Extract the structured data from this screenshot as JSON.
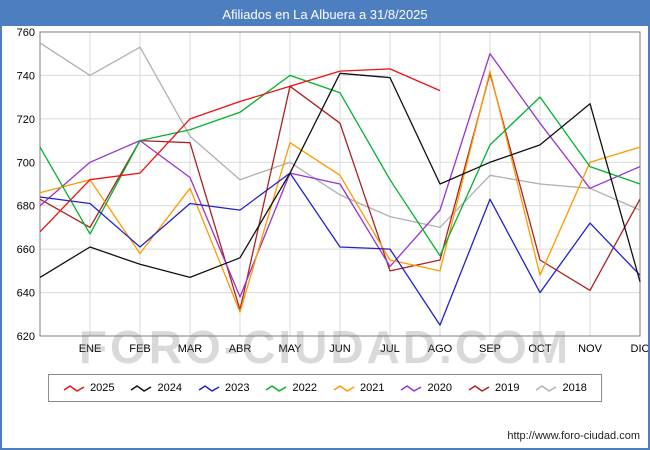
{
  "header": {
    "title": "Afiliados en La Albuera a 31/8/2025",
    "bg_color": "#4d7ebf"
  },
  "watermark": {
    "text": "FORO-CIUDAD.COM"
  },
  "footer": {
    "url": "http://www.foro-ciudad.com"
  },
  "chart_data": {
    "type": "line",
    "title": "Afiliados en La Albuera a 31/8/2025",
    "xlabel": "",
    "ylabel": "",
    "months": [
      "ENE",
      "FEB",
      "MAR",
      "ABR",
      "MAY",
      "JUN",
      "JUL",
      "AGO",
      "SEP",
      "OCT",
      "NOV",
      "DIC"
    ],
    "x_note": "13 points per full series: index 0 = left edge (start of year), indices 1-12 = ENE-DIC",
    "ylim": [
      620,
      760
    ],
    "yticks": [
      620,
      640,
      660,
      680,
      700,
      720,
      740,
      760
    ],
    "grid": true,
    "legend_position": "bottom",
    "grid_color": "#d9d9d9",
    "axis_color": "#7f7f7f",
    "series": [
      {
        "name": "2025",
        "color": "#ee1111",
        "values": [
          668,
          692,
          695,
          720,
          728,
          735,
          742,
          743,
          733
        ]
      },
      {
        "name": "2024",
        "color": "#111111",
        "values": [
          647,
          661,
          653,
          647,
          656,
          695,
          741,
          739,
          690,
          700,
          708,
          727,
          645
        ]
      },
      {
        "name": "2023",
        "color": "#2222cc",
        "values": [
          684,
          681,
          661,
          681,
          678,
          695,
          661,
          660,
          625,
          683,
          640,
          672,
          648
        ]
      },
      {
        "name": "2022",
        "color": "#00b22d",
        "values": [
          707,
          667,
          710,
          715,
          723,
          740,
          732,
          692,
          657,
          708,
          730,
          698,
          690
        ]
      },
      {
        "name": "2021",
        "color": "#ff9900",
        "values": [
          686,
          692,
          658,
          688,
          631,
          709,
          694,
          655,
          650,
          742,
          648,
          700,
          707
        ]
      },
      {
        "name": "2020",
        "color": "#9933cc",
        "values": [
          680,
          700,
          710,
          693,
          638,
          695,
          690,
          652,
          678,
          750,
          718,
          688,
          698
        ]
      },
      {
        "name": "2019",
        "color": "#aa2222",
        "values": [
          683,
          670,
          710,
          709,
          632,
          735,
          718,
          650,
          655,
          741,
          655,
          641,
          683
        ]
      },
      {
        "name": "2018",
        "color": "#b0b0b0",
        "values": [
          755,
          740,
          753,
          712,
          692,
          700,
          685,
          675,
          670,
          694,
          690,
          688,
          678
        ]
      }
    ]
  }
}
